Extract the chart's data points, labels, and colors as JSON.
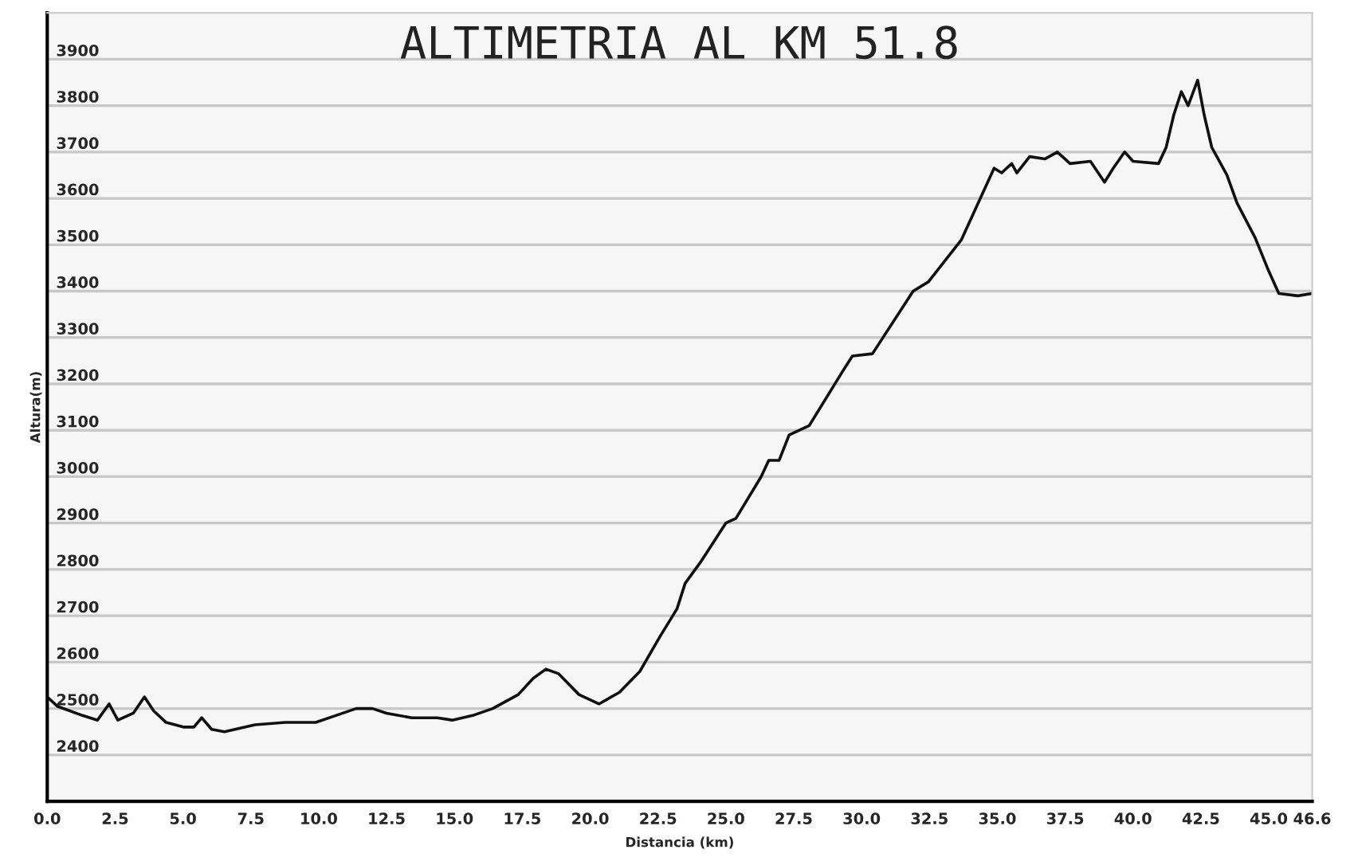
{
  "chart_data": {
    "type": "line",
    "title": "ALTIMETRIA AL KM 51.8",
    "xlabel": "Distancia (km)",
    "ylabel": "Altura(m)",
    "series": [
      {
        "color": "#111111",
        "x": [
          0,
          0.37,
          1.3,
          1.85,
          2.28,
          2.6,
          3.17,
          3.58,
          3.92,
          4.38,
          5.04,
          5.4,
          5.69,
          6.06,
          6.53,
          7.65,
          8.77,
          9.2,
          9.89,
          10.63,
          11.38,
          11.98,
          12.5,
          13.43,
          14.37,
          14.92,
          15.67,
          16.41,
          17.35,
          17.9,
          18.37,
          18.84,
          19.59,
          20.33,
          21.08,
          21.83,
          22.57,
          23.2,
          23.5,
          24.06,
          25.0,
          25.37,
          26.3,
          26.58,
          26.96,
          27.33,
          28.07,
          29.28,
          29.66,
          30.4,
          31.9,
          32.46,
          33.67,
          34.1,
          34.88,
          35.16,
          35.53,
          35.72,
          36.19,
          36.75,
          37.21,
          37.68,
          38.43,
          38.95,
          39.27,
          39.69,
          40.0,
          40.94,
          41.22,
          41.5,
          41.78,
          42.03,
          42.38,
          42.62,
          42.9,
          43.46,
          43.83,
          44.5,
          44.95,
          45.37,
          46.07,
          46.6
        ],
        "values": [
          2525,
          2505,
          2485,
          2475,
          2510,
          2475,
          2490,
          2525,
          2495,
          2470,
          2460,
          2460,
          2480,
          2455,
          2450,
          2465,
          2470,
          2470,
          2470,
          2485,
          2500,
          2500,
          2490,
          2480,
          2480,
          2475,
          2485,
          2500,
          2530,
          2565,
          2585,
          2575,
          2530,
          2510,
          2535,
          2580,
          2655,
          2715,
          2770,
          2815,
          2900,
          2910,
          3000,
          3035,
          3035,
          3090,
          3110,
          3225,
          3260,
          3265,
          3400,
          3420,
          3510,
          3565,
          3665,
          3655,
          3675,
          3655,
          3690,
          3685,
          3700,
          3675,
          3680,
          3635,
          3665,
          3700,
          3680,
          3675,
          3710,
          3780,
          3830,
          3800,
          3855,
          3780,
          3710,
          3650,
          3590,
          3515,
          3450,
          3395,
          3390,
          3395
        ]
      }
    ],
    "xlim": [
      0,
      46.6
    ],
    "ylim": [
      2300,
      4000
    ],
    "xticks": [
      {
        "value": 0,
        "label": "0.0"
      },
      {
        "value": 2.5,
        "label": "2.5"
      },
      {
        "value": 5,
        "label": "5.0"
      },
      {
        "value": 7.5,
        "label": "7.5"
      },
      {
        "value": 10,
        "label": "10.0"
      },
      {
        "value": 12.5,
        "label": "12.5"
      },
      {
        "value": 15,
        "label": "15.0"
      },
      {
        "value": 17.5,
        "label": "17.5"
      },
      {
        "value": 20,
        "label": "20.0"
      },
      {
        "value": 22.5,
        "label": "22.5"
      },
      {
        "value": 25,
        "label": "25.0"
      },
      {
        "value": 27.5,
        "label": "27.5"
      },
      {
        "value": 30,
        "label": "30.0"
      },
      {
        "value": 32.5,
        "label": "32.5"
      },
      {
        "value": 35,
        "label": "35.0"
      },
      {
        "value": 37.5,
        "label": "37.5"
      },
      {
        "value": 40,
        "label": "40.0"
      },
      {
        "value": 42.5,
        "label": "42.5"
      },
      {
        "value": 45,
        "label": "45.0"
      },
      {
        "value": 46.6,
        "label": "46.6"
      }
    ],
    "yticks": [
      2400,
      2500,
      2600,
      2700,
      2800,
      2900,
      3000,
      3100,
      3200,
      3300,
      3400,
      3500,
      3600,
      3700,
      3800,
      3900
    ],
    "grid": "y",
    "legend": false
  }
}
